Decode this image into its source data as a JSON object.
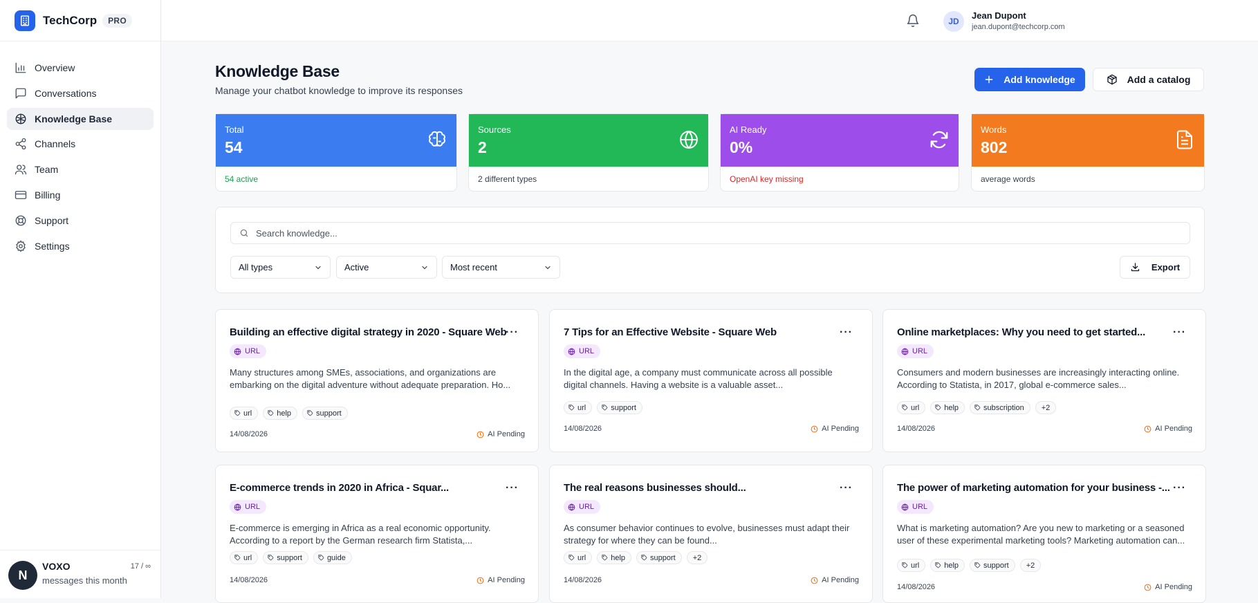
{
  "brand": {
    "name": "TechCorp",
    "badge": "PRO",
    "logo_icon": "building-icon",
    "accent": "#2563eb"
  },
  "sidebar": {
    "items": [
      {
        "label": "Overview",
        "icon": "bar-chart-icon",
        "active": false
      },
      {
        "label": "Conversations",
        "icon": "message-square-icon",
        "active": false
      },
      {
        "label": "Knowledge Base",
        "icon": "brain-icon",
        "active": true
      },
      {
        "label": "Channels",
        "icon": "share-icon",
        "active": false
      },
      {
        "label": "Team",
        "icon": "users-icon",
        "active": false
      },
      {
        "label": "Billing",
        "icon": "credit-card-icon",
        "active": false
      },
      {
        "label": "Support",
        "icon": "life-buoy-icon",
        "active": false
      },
      {
        "label": "Settings",
        "icon": "gear-icon",
        "active": false
      }
    ],
    "footer": {
      "avatar_initial": "N",
      "name": "VOXO",
      "subtitle": "messages this month",
      "count": "17 / ∞"
    }
  },
  "topbar": {
    "notification_icon": "bell-icon",
    "user": {
      "initials": "JD",
      "name": "Jean Dupont",
      "email": "jean.dupont@techcorp.com"
    }
  },
  "header": {
    "title": "Knowledge Base",
    "subtitle": "Manage your chatbot knowledge to improve its responses",
    "add_knowledge_label": "Add knowledge",
    "add_catalog_label": "Add a catalog"
  },
  "stats": [
    {
      "label": "Total",
      "value": "54",
      "sub": "54 active",
      "color": "#3b7cf0",
      "sub_color": "#16a34a",
      "icon": "brain-icon"
    },
    {
      "label": "Sources",
      "value": "2",
      "sub": "2 different types",
      "color": "#22b857",
      "sub_color": "#374151",
      "icon": "globe-icon"
    },
    {
      "label": "AI Ready",
      "value": "0%",
      "sub": "OpenAI key missing",
      "color": "#9d4eea",
      "sub_color": "#dc2626",
      "icon": "refresh-icon"
    },
    {
      "label": "Words",
      "value": "802",
      "sub": "average words",
      "color": "#f47a1f",
      "sub_color": "#374151",
      "icon": "file-text-icon"
    }
  ],
  "filters": {
    "search_placeholder": "Search knowledge...",
    "type_select": "All types",
    "status_select": "Active",
    "sort_select": "Most recent",
    "export_label": "Export"
  },
  "cards": [
    {
      "title": "Building an effective digital strategy in 2020 - Square Web",
      "badge": "URL",
      "description": "Many structures among SMEs, associations, and organizations are embarking on the digital adventure without adequate preparation. Ho...",
      "tags": [
        "url",
        "help",
        "support"
      ],
      "date": "14/08/2026",
      "status": "AI Pending"
    },
    {
      "title": "7 Tips for an Effective Website - Square Web",
      "badge": "URL",
      "description": "In the digital age, a company must communicate across all possible digital channels. Having a website is a valuable asset...",
      "tags": [
        "url",
        "support"
      ],
      "date": "14/08/2026",
      "status": "AI Pending"
    },
    {
      "title": "Online marketplaces: Why you need to get started...",
      "badge": "URL",
      "description": "Consumers and modern businesses are increasingly interacting online. According to Statista, in 2017, global e-commerce sales...",
      "tags": [
        "url",
        "help",
        "subscription"
      ],
      "more": "+2",
      "date": "14/08/2026",
      "status": "AI Pending"
    },
    {
      "title": "E-commerce trends in 2020 in Africa - Squar...",
      "badge": "URL",
      "description": "E-commerce is emerging in Africa as a real economic opportunity. According to a report by the German research firm Statista,...",
      "tags": [
        "url",
        "support",
        "guide"
      ],
      "date": "14/08/2026",
      "status": "AI Pending"
    },
    {
      "title": "The real reasons businesses should...",
      "badge": "URL",
      "description": "As consumer behavior continues to evolve, businesses must adapt their strategy for where they can be found...",
      "tags": [
        "url",
        "help",
        "support"
      ],
      "more": "+2",
      "date": "14/08/2026",
      "status": "AI Pending"
    },
    {
      "title": "The power of marketing automation for your business -...",
      "badge": "URL",
      "description": "What is marketing automation? Are you new to marketing or a seasoned user of these experimental marketing tools? Marketing automation can...",
      "tags": [
        "url",
        "help",
        "support"
      ],
      "more": "+2",
      "date": "14/08/2026",
      "status": "AI Pending"
    }
  ]
}
